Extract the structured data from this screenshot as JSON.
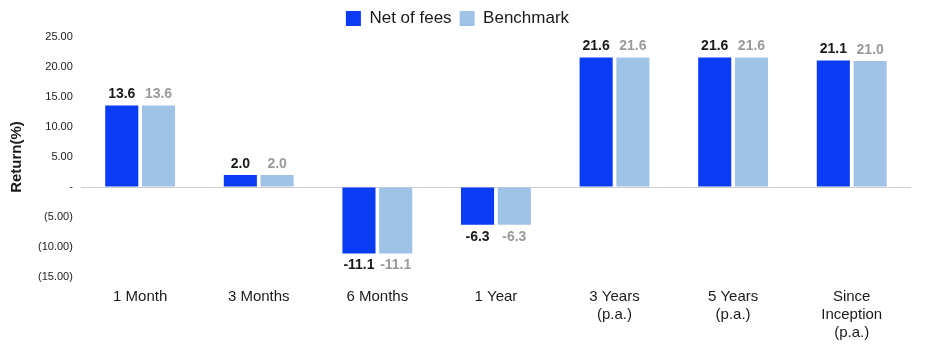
{
  "chart_data": {
    "type": "bar",
    "y_label": "Return(%)",
    "categories": [
      "1 Month",
      "3 Months",
      "6 Months",
      "1 Year",
      "3 Years\n(p.a.)",
      "5 Years\n(p.a.)",
      "Since\nInception\n(p.a.)"
    ],
    "series": [
      {
        "name": "Net of fees",
        "color": "#0a3cf5",
        "values": [
          13.6,
          2.0,
          -11.1,
          -6.3,
          21.6,
          21.6,
          21.1
        ],
        "value_labels": [
          "13.6",
          "2.0",
          "-11.1",
          "-6.3",
          "21.6",
          "21.6",
          "21.1"
        ]
      },
      {
        "name": "Benchmark",
        "color": "#9fc3e7",
        "values": [
          13.6,
          2.0,
          -11.1,
          -6.3,
          21.6,
          21.6,
          21.0
        ],
        "value_labels": [
          "13.6",
          "2.0",
          "-11.1",
          "-6.3",
          "21.6",
          "21.6",
          "21.0"
        ]
      }
    ],
    "ylim": [
      -15,
      25
    ],
    "yticks": [
      {
        "value": -15,
        "label": "(15.00)"
      },
      {
        "value": -10,
        "label": "(10.00)"
      },
      {
        "value": -5,
        "label": "(5.00)"
      },
      {
        "value": 0,
        "label": "-"
      },
      {
        "value": 5,
        "label": "5.00"
      },
      {
        "value": 10,
        "label": "10.00"
      },
      {
        "value": 15,
        "label": "15.00"
      },
      {
        "value": 20,
        "label": "20.00"
      },
      {
        "value": 25,
        "label": "25.00"
      }
    ],
    "grid": false,
    "legend": "top",
    "data_labels": true
  }
}
